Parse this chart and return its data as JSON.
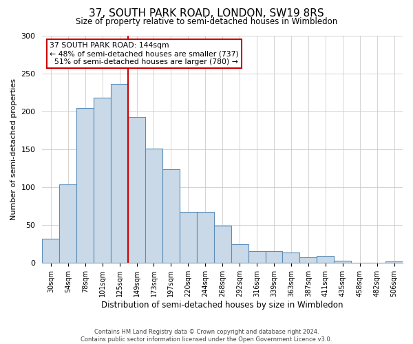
{
  "title": "37, SOUTH PARK ROAD, LONDON, SW19 8RS",
  "subtitle": "Size of property relative to semi-detached houses in Wimbledon",
  "xlabel": "Distribution of semi-detached houses by size in Wimbledon",
  "ylabel": "Number of semi-detached properties",
  "bar_labels": [
    "30sqm",
    "54sqm",
    "78sqm",
    "101sqm",
    "125sqm",
    "149sqm",
    "173sqm",
    "197sqm",
    "220sqm",
    "244sqm",
    "268sqm",
    "292sqm",
    "316sqm",
    "339sqm",
    "363sqm",
    "387sqm",
    "411sqm",
    "435sqm",
    "458sqm",
    "482sqm",
    "506sqm"
  ],
  "bar_values": [
    32,
    104,
    204,
    218,
    236,
    193,
    151,
    124,
    67,
    67,
    49,
    25,
    16,
    16,
    14,
    8,
    9,
    3,
    0,
    0,
    2
  ],
  "bar_color": "#c9d9e8",
  "bar_edge_color": "#5b8db8",
  "red_line_index": 4,
  "annotation_box_label": "37 SOUTH PARK ROAD: 144sqm",
  "pct_smaller": 48,
  "n_smaller": 737,
  "pct_larger": 51,
  "n_larger": 780,
  "red_line_color": "#cc0000",
  "annotation_box_edge_color": "#cc0000",
  "ylim": [
    0,
    300
  ],
  "yticks": [
    0,
    50,
    100,
    150,
    200,
    250,
    300
  ],
  "footer1": "Contains HM Land Registry data © Crown copyright and database right 2024.",
  "footer2": "Contains public sector information licensed under the Open Government Licence v3.0.",
  "background_color": "#ffffff",
  "grid_color": "#cccccc"
}
